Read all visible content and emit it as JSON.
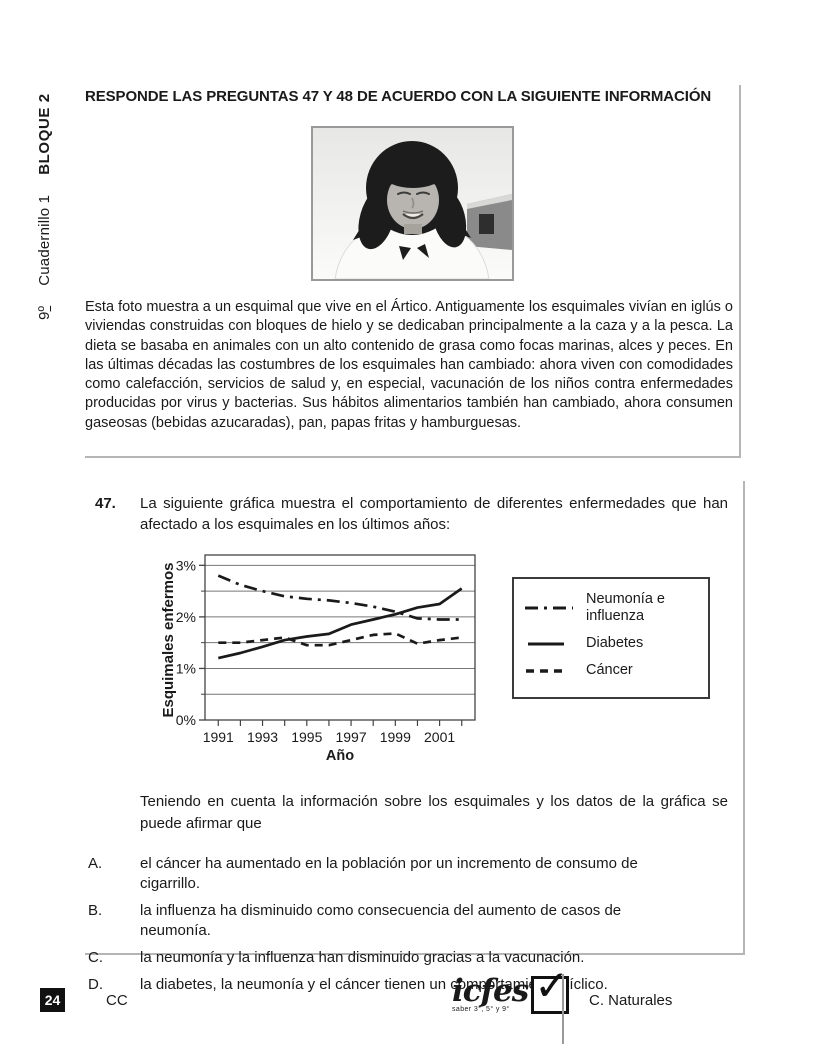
{
  "sidebar": {
    "grade_number": "9",
    "grade_ordinal": "º",
    "booklet": "Cuadernillo 1",
    "block": "BLOQUE 2"
  },
  "info": {
    "header": "RESPONDE LAS PREGUNTAS 47 Y 48 DE ACUERDO CON LA SIGUIENTE INFORMACIÓN",
    "paragraph": "Esta foto muestra a un esquimal que vive en el Ártico. Antiguamente los esquimales vivían en iglús o viviendas construidas con bloques de hielo y se dedicaban principalmente a la caza y a la pesca. La dieta se basaba en animales con un alto contenido de grasa como focas marinas, alces y peces. En las últimas décadas las costumbres de los esquimales han cambiado: ahora viven con comodidades como calefacción, servicios de salud y, en especial, vacunación de los niños contra enfermedades producidas por virus y bacterias. Sus hábitos alimentarios también han cambiado, ahora consumen gaseosas (bebidas azucaradas), pan, papas fritas y hamburguesas."
  },
  "question": {
    "number": "47.",
    "prompt": "La siguiente gráfica muestra el comportamiento de diferentes enfermedades que han afectado a los esquimales en los últimos años:",
    "statement": "Teniendo en cuenta la información sobre los esquimales y los datos de la gráfica se puede afirmar que",
    "options": [
      {
        "label": "A.",
        "text": "el cáncer ha aumentado en la población por un incremento de consumo de cigarrillo."
      },
      {
        "label": "B.",
        "text": "la influenza ha disminuido como consecuencia del aumento de casos de neumonía."
      },
      {
        "label": "C.",
        "text": "la neumonía y la influenza han disminuido gracias a la vacunación."
      },
      {
        "label": "D.",
        "text": "la diabetes, la neumonía y el cáncer tienen un comportamiento cíclico."
      }
    ]
  },
  "chart_data": {
    "type": "line",
    "x": [
      1991,
      1992,
      1993,
      1994,
      1995,
      1996,
      1997,
      1998,
      1999,
      2000,
      2001,
      2002
    ],
    "series": [
      {
        "name": "Neumonía e influenza",
        "style": "dashdot",
        "values": [
          2.8,
          2.62,
          2.5,
          2.4,
          2.35,
          2.32,
          2.27,
          2.2,
          2.1,
          1.97,
          1.95,
          1.95
        ]
      },
      {
        "name": "Diabetes",
        "style": "solid",
        "values": [
          1.2,
          1.3,
          1.42,
          1.55,
          1.62,
          1.67,
          1.85,
          1.95,
          2.05,
          2.18,
          2.25,
          2.55
        ]
      },
      {
        "name": "Cáncer",
        "style": "dashed",
        "values": [
          1.5,
          1.5,
          1.55,
          1.6,
          1.45,
          1.45,
          1.55,
          1.65,
          1.68,
          1.48,
          1.55,
          1.6
        ]
      }
    ],
    "xlabel": "Año",
    "ylabel": "Esquimales enfermos",
    "ylim": [
      0,
      3.2
    ],
    "yticks": [
      0,
      1,
      2,
      3
    ],
    "ytick_labels": [
      "0%",
      "1%",
      "2%",
      "3%"
    ],
    "minor_yticks": [
      0.5,
      1.5,
      2.5
    ],
    "gridline_step": 0.5,
    "xticks_labeled": [
      1991,
      1993,
      1995,
      1997,
      1999,
      2001
    ],
    "xtick_labels": [
      "1991",
      "1993",
      "1995",
      "1997",
      "1999",
      "2001"
    ],
    "grid": true,
    "legend_position": "right"
  },
  "footer": {
    "page_number": "24",
    "code": "CC",
    "logo_name": "icfes",
    "logo_tagline": "saber 3°, 5° y 9°",
    "subject": "C. Naturales"
  },
  "colors": {
    "text": "#1a1a1a",
    "box_border": "#b5b5b5",
    "chart_line": "#1a1a1a",
    "gridline": "#777777",
    "badge_bg": "#111111"
  }
}
